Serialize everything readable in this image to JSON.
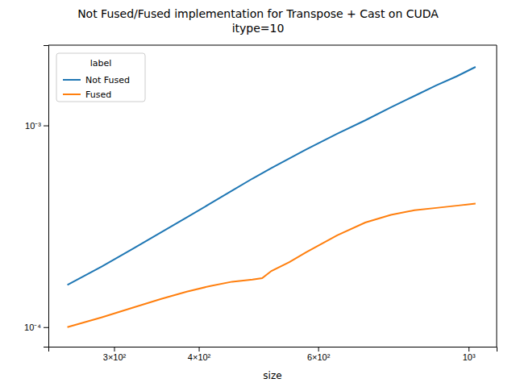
{
  "chart_data": {
    "type": "line",
    "title": "Not Fused/Fused implementation for Transpose + Cast on CUDA\nitype=10",
    "xlabel": "size",
    "legend_title": "label",
    "log": true,
    "legend": "upper left",
    "series": [
      {
        "name": "Not Fused",
        "color": "#1f77b4",
        "x": [
          256,
          288,
          320,
          352,
          384,
          416,
          448,
          480,
          512,
          576,
          640,
          704,
          768,
          832,
          896,
          960,
          1024
        ],
        "values": [
          0.000162,
          0.0002,
          0.000245,
          0.000295,
          0.00035,
          0.00041,
          0.000475,
          0.000545,
          0.000615,
          0.00076,
          0.00091,
          0.00106,
          0.00123,
          0.0014,
          0.00158,
          0.00175,
          0.00195
        ]
      },
      {
        "name": "Fused",
        "color": "#ff7f0e",
        "x": [
          256,
          288,
          320,
          352,
          384,
          416,
          448,
          480,
          496,
          512,
          544,
          576,
          640,
          704,
          768,
          832,
          896,
          960,
          1024
        ],
        "values": [
          0.0001,
          0.000112,
          0.000125,
          0.000138,
          0.00015,
          0.00016,
          0.000168,
          0.000172,
          0.000175,
          0.00019,
          0.00021,
          0.000235,
          0.000285,
          0.00033,
          0.00036,
          0.00038,
          0.00039,
          0.0004,
          0.00041
        ]
      }
    ],
    "xlim": [
      240,
      1100
    ],
    "ylim": [
      8e-05,
      0.0025
    ],
    "xticks": [
      {
        "value": 300,
        "label": "3×10²"
      },
      {
        "value": 400,
        "label": "4×10²"
      },
      {
        "value": 600,
        "label": "6×10²"
      },
      {
        "value": 1000,
        "label": "10³"
      }
    ],
    "yticks": [
      {
        "value": 0.0001,
        "label": "10⁻⁴"
      },
      {
        "value": 0.001,
        "label": "10⁻³"
      }
    ]
  }
}
